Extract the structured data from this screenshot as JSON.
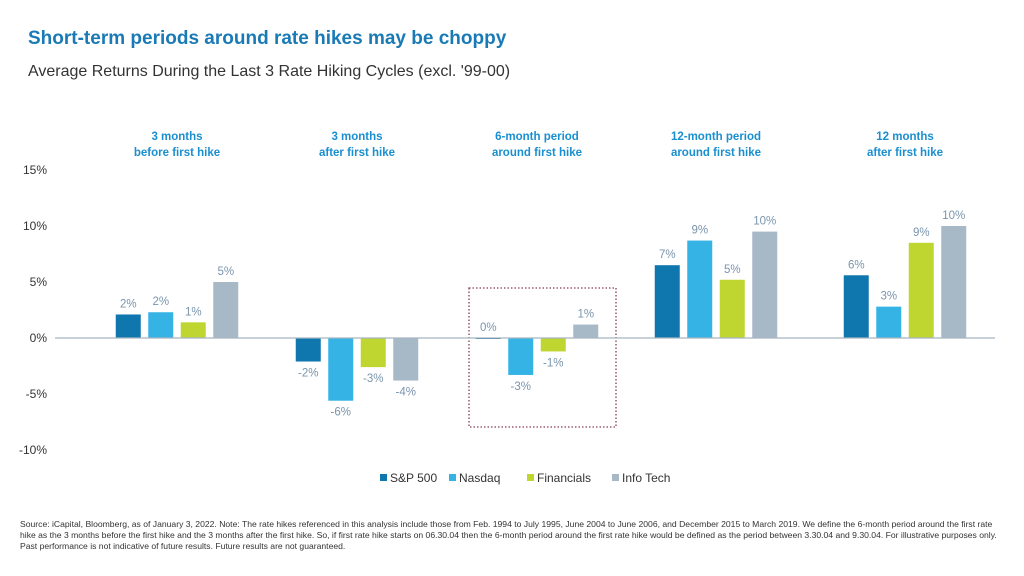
{
  "title": "Short-term periods around rate hikes may be choppy",
  "subtitle": "Average Returns During the Last 3 Rate Hiking Cycles (excl. '99-00)",
  "source": "Source: iCapital, Bloomberg, as of January 3, 2022. Note: The rate hikes referenced in this analysis include those from Feb. 1994 to July 1995, June 2004 to June 2006, and December 2015 to March  2019. We define the 6-month period around the first rate hike as the 3 months before the first hike and the 3 months after the first hike. So, if first rate hike starts on 06.30.04 then the 6-month period around the first rate hike would be defined as the period between 3.30.04 and 9.30.04. For illustrative purposes only. Past performance is not indicative of future results. Future results are not guaranteed.",
  "chart_data": {
    "type": "bar",
    "categories": [
      [
        "3 months",
        "before first hike"
      ],
      [
        "3 months",
        "after first hike"
      ],
      [
        "6-month period",
        "around first hike"
      ],
      [
        "12-month period",
        "around first hike"
      ],
      [
        "12 months",
        "after first hike"
      ]
    ],
    "ylim": [
      -10,
      15
    ],
    "yticks": [
      "15%",
      "10%",
      "5%",
      "0%",
      "-5%",
      "-10%"
    ],
    "ytick_values": [
      15,
      10,
      5,
      0,
      -5,
      -10
    ],
    "grid": false,
    "legend": "bottom",
    "highlighted_category": 2,
    "series": [
      {
        "name": "S&P 500",
        "color": "#0f76ae",
        "values": [
          2.1,
          -2.1,
          0.0,
          6.5,
          5.6
        ],
        "labels": [
          "2%",
          "-2%",
          "0%",
          "7%",
          "6%"
        ]
      },
      {
        "name": "Nasdaq",
        "color": "#35b3e5",
        "values": [
          2.3,
          -5.6,
          -3.3,
          8.7,
          2.8
        ],
        "labels": [
          "2%",
          "-6%",
          "-3%",
          "9%",
          "3%"
        ]
      },
      {
        "name": "Financials",
        "color": "#bfd630",
        "values": [
          1.4,
          -2.6,
          -1.2,
          5.2,
          8.5
        ],
        "labels": [
          "1%",
          "-3%",
          "-1%",
          "5%",
          "9%"
        ]
      },
      {
        "name": "Info Tech",
        "color": "#a7b9c7",
        "values": [
          5.0,
          -3.8,
          1.2,
          9.5,
          10.0
        ],
        "labels": [
          "5%",
          "-4%",
          "1%",
          "10%",
          "10%"
        ]
      }
    ]
  }
}
